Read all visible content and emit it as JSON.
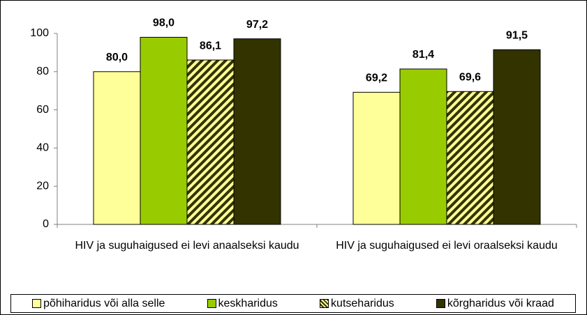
{
  "chart_data": {
    "type": "bar",
    "categories": [
      "HIV ja suguhaigused ei levi anaalseksi kaudu",
      "HIV ja suguhaigused ei levi oraalseksi kaudu"
    ],
    "series": [
      {
        "name": "põhiharidus või alla selle",
        "color": "#ffff99",
        "values": [
          80.0,
          69.2
        ],
        "value_labels": [
          "80,0",
          "69,2"
        ]
      },
      {
        "name": "keskharidus",
        "color": "#99cc00",
        "values": [
          98.0,
          81.4
        ],
        "value_labels": [
          "98,0",
          "81,4"
        ]
      },
      {
        "name": "kutseharidus",
        "color": "#ffff99",
        "hatch": "#333300",
        "values": [
          86.1,
          69.6
        ],
        "value_labels": [
          "86,1",
          "69,6"
        ]
      },
      {
        "name": "kõrgharidus või kraad",
        "color": "#333300",
        "values": [
          97.2,
          91.5
        ],
        "value_labels": [
          "97,2",
          "91,5"
        ]
      }
    ],
    "ylim": [
      0,
      100
    ],
    "yticks": [
      0,
      20,
      40,
      60,
      80,
      100
    ],
    "grid": false,
    "legend": "bottom"
  }
}
